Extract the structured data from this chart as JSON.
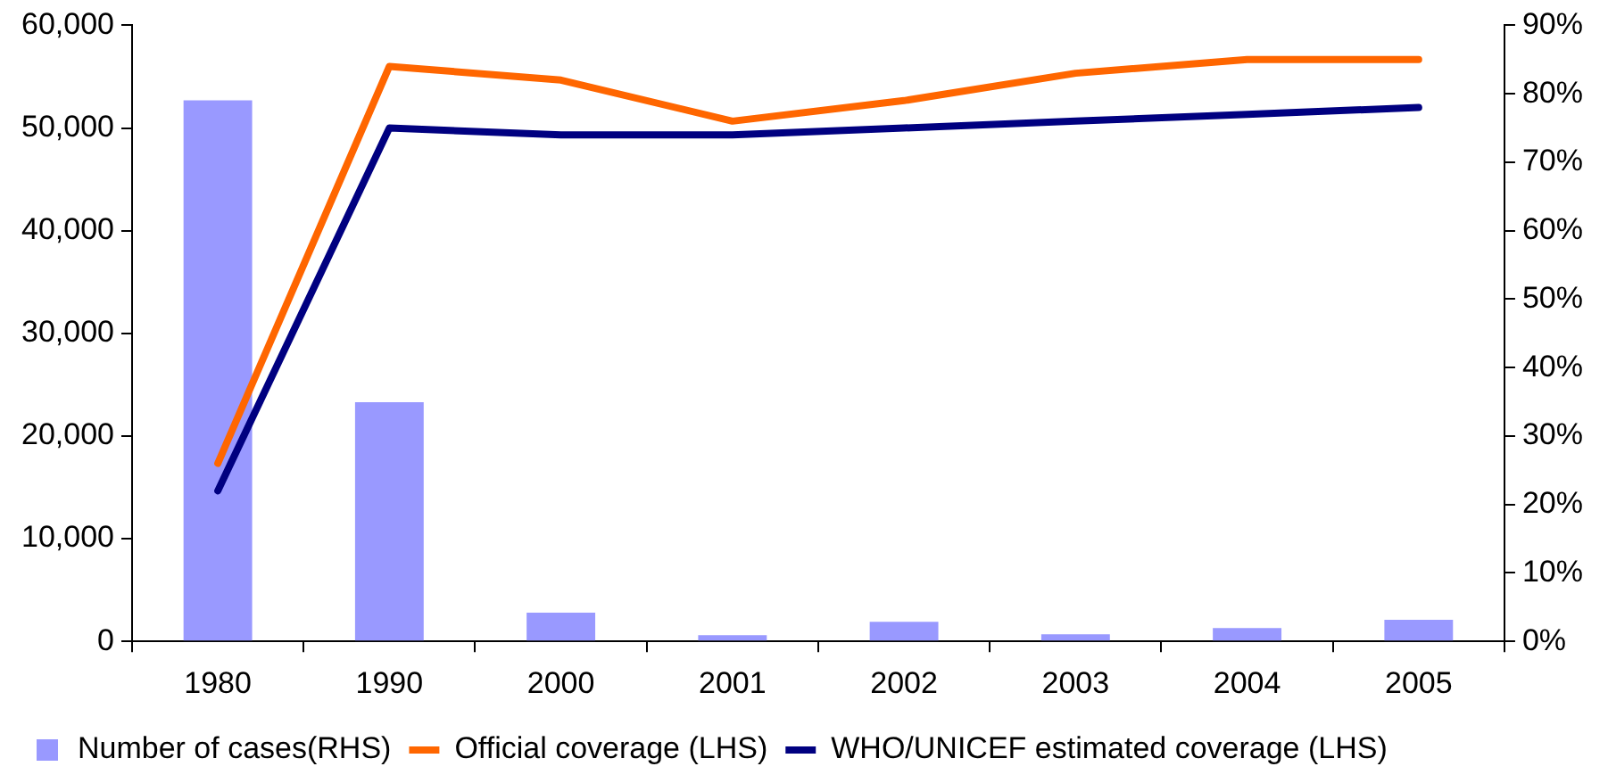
{
  "chart_data": {
    "type": "bar",
    "categories": [
      "1980",
      "1990",
      "2000",
      "2001",
      "2002",
      "2003",
      "2004",
      "2005"
    ],
    "series": [
      {
        "name": "Number of cases(RHS)",
        "color": "#9999ff",
        "values": [
          52700,
          23300,
          2800,
          600,
          1900,
          700,
          1300,
          2100
        ]
      },
      {
        "name": "Official coverage (LHS)",
        "type": "line",
        "axis": "y2",
        "color": "#ff6600",
        "values": [
          26,
          84,
          82,
          76,
          79,
          83,
          85,
          85
        ]
      },
      {
        "name": "WHO/UNICEF estimated coverage (LHS)",
        "type": "line",
        "axis": "y2",
        "color": "#000080",
        "values": [
          22,
          75,
          74,
          74,
          75,
          76,
          77,
          78
        ]
      }
    ],
    "ylim": [
      0,
      60000
    ],
    "yticks": [
      {
        "value": 0,
        "label": "0"
      },
      {
        "value": 10000,
        "label": "10,000"
      },
      {
        "value": 20000,
        "label": "20,000"
      },
      {
        "value": 30000,
        "label": "30,000"
      },
      {
        "value": 40000,
        "label": "40,000"
      },
      {
        "value": 50000,
        "label": "50,000"
      },
      {
        "value": 60000,
        "label": "60,000"
      }
    ],
    "y2lim": [
      0,
      90
    ],
    "y2ticks": [
      {
        "value": 0,
        "label": "0%"
      },
      {
        "value": 10,
        "label": "10%"
      },
      {
        "value": 20,
        "label": "20%"
      },
      {
        "value": 30,
        "label": "30%"
      },
      {
        "value": 40,
        "label": "40%"
      },
      {
        "value": 50,
        "label": "50%"
      },
      {
        "value": 60,
        "label": "60%"
      },
      {
        "value": 70,
        "label": "70%"
      },
      {
        "value": 80,
        "label": "80%"
      },
      {
        "value": 90,
        "label": "90%"
      }
    ],
    "grid": false,
    "legend": "bottom",
    "marker": "none"
  }
}
